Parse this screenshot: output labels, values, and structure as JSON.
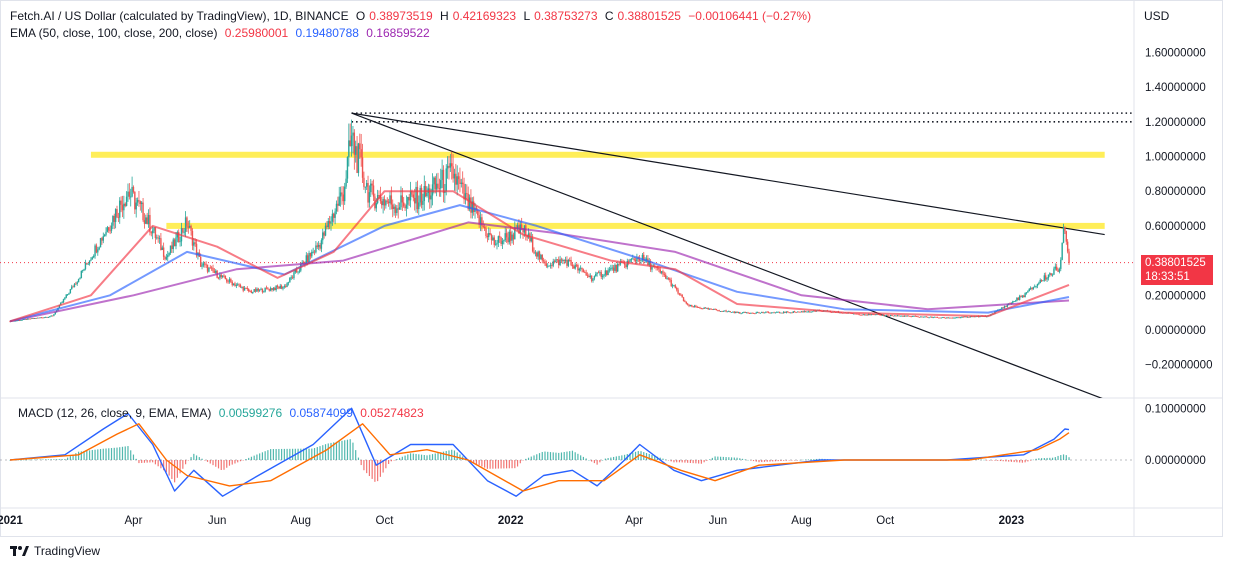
{
  "header": {
    "symbol": "Fetch.AI / US Dollar (calculated by TradingView), 1D, BINANCE",
    "open_label": "O",
    "open": "0.38973519",
    "high_label": "H",
    "high": "0.42169323",
    "low_label": "L",
    "low": "0.38753273",
    "close_label": "C",
    "close": "0.38801525",
    "change": "−0.00106441 (−0.27%)",
    "ema_label": "EMA (50, close, 100, close, 200, close)",
    "ema50": "0.25980001",
    "ema100": "0.19480788",
    "ema200": "0.16859522",
    "macd_label": "MACD (12, 26, close, 9, EMA, EMA)",
    "macd_hist": "0.00599276",
    "macd_line": "0.05874099",
    "macd_signal": "0.05274823"
  },
  "currency": "USD",
  "price_tag": {
    "price": "0.38801525",
    "countdown": "18:33:51"
  },
  "watermark": "TradingView",
  "colors": {
    "up": "#26a69a",
    "down": "#ef5350",
    "ema50": "#f23645",
    "ema100": "#2962ff",
    "ema200": "#9c27b0",
    "zone": "#ffeb3b",
    "macd": "#2962ff",
    "signal": "#ff6d00"
  },
  "chart_data": [
    {
      "type": "candlestick",
      "title": "Fetch.AI / US Dollar (calculated by TradingView), 1D, BINANCE",
      "x_ticks": [
        "2021",
        "Apr",
        "Jun",
        "Aug",
        "Oct",
        "2022",
        "Apr",
        "Jun",
        "Aug",
        "Oct",
        "2023"
      ],
      "y_ticks": [
        "1.60000000",
        "1.40000000",
        "1.20000000",
        "1.00000000",
        "0.80000000",
        "0.60000000",
        "0.40000000",
        "0.20000000",
        "0.00000000",
        "−0.20000000"
      ],
      "ylim": [
        -0.4,
        1.8
      ],
      "x_range": [
        "2021-01-01",
        "2023-02-20"
      ],
      "approx_close_series": [
        [
          "2021-01-01",
          0.05
        ],
        [
          "2021-02-01",
          0.08
        ],
        [
          "2021-02-20",
          0.3
        ],
        [
          "2021-03-10",
          0.55
        ],
        [
          "2021-03-28",
          0.8
        ],
        [
          "2021-04-10",
          0.65
        ],
        [
          "2021-04-25",
          0.42
        ],
        [
          "2021-05-10",
          0.62
        ],
        [
          "2021-05-20",
          0.38
        ],
        [
          "2021-06-05",
          0.3
        ],
        [
          "2021-06-25",
          0.22
        ],
        [
          "2021-07-20",
          0.25
        ],
        [
          "2021-08-15",
          0.5
        ],
        [
          "2021-09-01",
          0.8
        ],
        [
          "2021-09-07",
          1.1
        ],
        [
          "2021-09-20",
          0.78
        ],
        [
          "2021-10-10",
          0.72
        ],
        [
          "2021-11-01",
          0.78
        ],
        [
          "2021-11-20",
          0.9
        ],
        [
          "2021-12-01",
          0.72
        ],
        [
          "2021-12-20",
          0.5
        ],
        [
          "2022-01-10",
          0.58
        ],
        [
          "2022-01-25",
          0.38
        ],
        [
          "2022-02-10",
          0.4
        ],
        [
          "2022-03-01",
          0.3
        ],
        [
          "2022-03-25",
          0.38
        ],
        [
          "2022-04-05",
          0.42
        ],
        [
          "2022-04-25",
          0.3
        ],
        [
          "2022-05-10",
          0.14
        ],
        [
          "2022-05-25",
          0.12
        ],
        [
          "2022-06-15",
          0.1
        ],
        [
          "2022-07-15",
          0.1
        ],
        [
          "2022-08-15",
          0.11
        ],
        [
          "2022-09-15",
          0.09
        ],
        [
          "2022-10-15",
          0.08
        ],
        [
          "2022-11-15",
          0.07
        ],
        [
          "2022-12-15",
          0.08
        ],
        [
          "2023-01-10",
          0.2
        ],
        [
          "2023-01-25",
          0.3
        ],
        [
          "2023-02-05",
          0.36
        ],
        [
          "2023-02-08",
          0.58
        ],
        [
          "2023-02-12",
          0.39
        ]
      ],
      "ema50_approx": [
        [
          "2021-01-01",
          0.05
        ],
        [
          "2021-03-01",
          0.2
        ],
        [
          "2021-04-15",
          0.6
        ],
        [
          "2021-06-01",
          0.48
        ],
        [
          "2021-07-15",
          0.3
        ],
        [
          "2021-08-25",
          0.45
        ],
        [
          "2021-10-01",
          0.8
        ],
        [
          "2021-11-20",
          0.8
        ],
        [
          "2022-01-10",
          0.55
        ],
        [
          "2022-03-15",
          0.4
        ],
        [
          "2022-05-01",
          0.35
        ],
        [
          "2022-06-15",
          0.15
        ],
        [
          "2022-09-01",
          0.1
        ],
        [
          "2022-12-15",
          0.08
        ],
        [
          "2023-02-12",
          0.26
        ]
      ],
      "ema100_approx": [
        [
          "2021-01-01",
          0.05
        ],
        [
          "2021-03-15",
          0.2
        ],
        [
          "2021-05-10",
          0.45
        ],
        [
          "2021-07-20",
          0.32
        ],
        [
          "2021-10-01",
          0.6
        ],
        [
          "2021-11-25",
          0.72
        ],
        [
          "2022-01-20",
          0.6
        ],
        [
          "2022-04-10",
          0.4
        ],
        [
          "2022-06-15",
          0.22
        ],
        [
          "2022-09-01",
          0.12
        ],
        [
          "2022-12-15",
          0.1
        ],
        [
          "2023-02-12",
          0.19
        ]
      ],
      "ema200_approx": [
        [
          "2021-01-01",
          0.05
        ],
        [
          "2021-04-01",
          0.2
        ],
        [
          "2021-06-15",
          0.35
        ],
        [
          "2021-09-01",
          0.4
        ],
        [
          "2021-12-01",
          0.62
        ],
        [
          "2022-02-01",
          0.56
        ],
        [
          "2022-05-01",
          0.45
        ],
        [
          "2022-08-01",
          0.2
        ],
        [
          "2022-11-01",
          0.12
        ],
        [
          "2023-02-12",
          0.17
        ]
      ],
      "support_zones": [
        {
          "y": 1.01,
          "x_from": "2021-03-01",
          "x_to": "2023-03-10"
        },
        {
          "y": 0.6,
          "x_from": "2021-04-25",
          "x_to": "2023-03-10"
        }
      ],
      "dotted_levels": [
        1.25,
        1.2
      ],
      "trendlines": [
        {
          "from": [
            "2021-09-07",
            1.25
          ],
          "to": [
            "2023-03-10",
            0.55
          ]
        },
        {
          "from": [
            "2021-09-07",
            1.25
          ],
          "to": [
            "2023-03-10",
            -0.4
          ]
        }
      ],
      "last_price": 0.38801525
    },
    {
      "type": "macd",
      "title": "MACD (12, 26, close, 9, EMA, EMA)",
      "y_ticks": [
        "0.10000000",
        "0.00000000"
      ],
      "ylim": [
        -0.09,
        0.11
      ],
      "macd_approx": [
        [
          "2021-01-01",
          0.0
        ],
        [
          "2021-02-10",
          0.01
        ],
        [
          "2021-03-10",
          0.06
        ],
        [
          "2021-03-28",
          0.09
        ],
        [
          "2021-04-15",
          0.03
        ],
        [
          "2021-05-01",
          -0.06
        ],
        [
          "2021-05-15",
          -0.02
        ],
        [
          "2021-06-05",
          -0.07
        ],
        [
          "2021-07-01",
          -0.03
        ],
        [
          "2021-08-10",
          0.03
        ],
        [
          "2021-09-07",
          0.1
        ],
        [
          "2021-09-25",
          -0.01
        ],
        [
          "2021-10-20",
          0.03
        ],
        [
          "2021-11-20",
          0.03
        ],
        [
          "2021-12-15",
          -0.04
        ],
        [
          "2022-01-05",
          -0.07
        ],
        [
          "2022-01-25",
          -0.03
        ],
        [
          "2022-02-15",
          -0.02
        ],
        [
          "2022-03-05",
          -0.05
        ],
        [
          "2022-03-25",
          0.0
        ],
        [
          "2022-04-05",
          0.03
        ],
        [
          "2022-04-30",
          -0.02
        ],
        [
          "2022-05-20",
          -0.04
        ],
        [
          "2022-06-15",
          -0.02
        ],
        [
          "2022-08-15",
          0.0
        ],
        [
          "2022-11-15",
          0.0
        ],
        [
          "2023-01-10",
          0.01
        ],
        [
          "2023-02-01",
          0.04
        ],
        [
          "2023-02-09",
          0.06
        ],
        [
          "2023-02-12",
          0.05874099
        ]
      ],
      "signal_approx": [
        [
          "2021-01-01",
          0.0
        ],
        [
          "2021-02-20",
          0.01
        ],
        [
          "2021-03-20",
          0.05
        ],
        [
          "2021-04-05",
          0.07
        ],
        [
          "2021-04-25",
          0.0
        ],
        [
          "2021-05-10",
          -0.03
        ],
        [
          "2021-06-10",
          -0.05
        ],
        [
          "2021-07-10",
          -0.04
        ],
        [
          "2021-08-20",
          0.02
        ],
        [
          "2021-09-15",
          0.07
        ],
        [
          "2021-10-05",
          0.01
        ],
        [
          "2021-11-01",
          0.02
        ],
        [
          "2021-12-01",
          0.0
        ],
        [
          "2022-01-10",
          -0.06
        ],
        [
          "2022-02-05",
          -0.04
        ],
        [
          "2022-03-10",
          -0.04
        ],
        [
          "2022-04-05",
          0.01
        ],
        [
          "2022-05-05",
          -0.02
        ],
        [
          "2022-05-30",
          -0.04
        ],
        [
          "2022-07-01",
          -0.01
        ],
        [
          "2022-09-01",
          0.0
        ],
        [
          "2022-12-01",
          0.0
        ],
        [
          "2023-01-20",
          0.02
        ],
        [
          "2023-02-05",
          0.04
        ],
        [
          "2023-02-12",
          0.05274823
        ]
      ],
      "last_hist": 0.00599276
    }
  ]
}
